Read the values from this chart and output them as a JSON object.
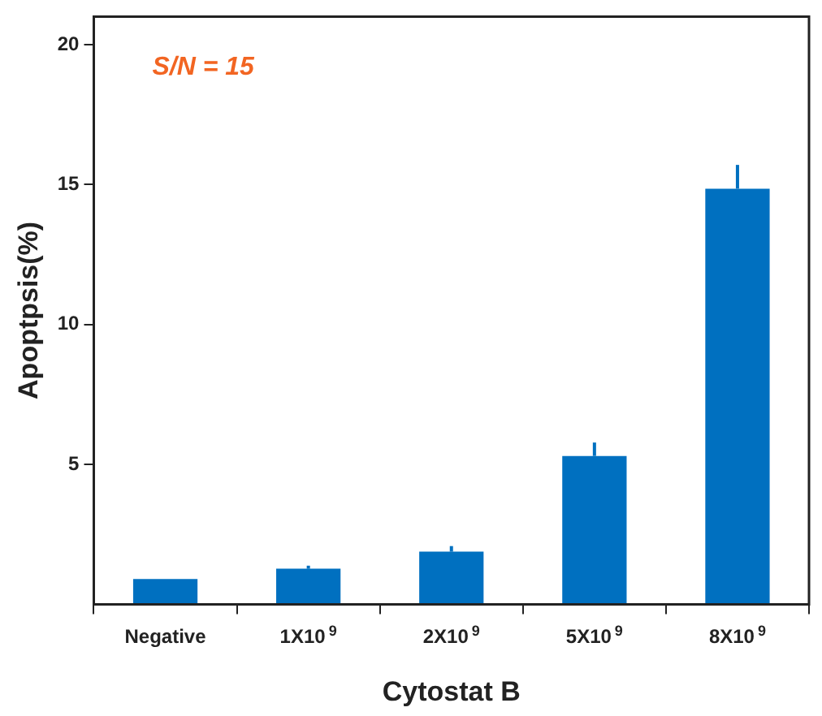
{
  "chart_data": {
    "type": "bar",
    "xlabel": "Cytostat B",
    "ylabel": "Apoptpsis(%)",
    "categories": [
      "Negative",
      "1X10$^{9}$",
      "2X10$^{9}$",
      "5X10$^{9}$",
      "8X10$^{9}$"
    ],
    "values": [
      0.9,
      1.27,
      1.88,
      5.3,
      14.85
    ],
    "errors": [
      null,
      [
        1.27,
        1.38
      ],
      [
        1.88,
        2.08
      ],
      [
        5.3,
        5.78
      ],
      [
        14.85,
        15.7
      ]
    ],
    "color": "#0070c0",
    "ylim": [
      0,
      21
    ],
    "yticks": [
      5,
      10,
      15,
      20
    ],
    "annotations": [
      "S/N = 15"
    ]
  }
}
